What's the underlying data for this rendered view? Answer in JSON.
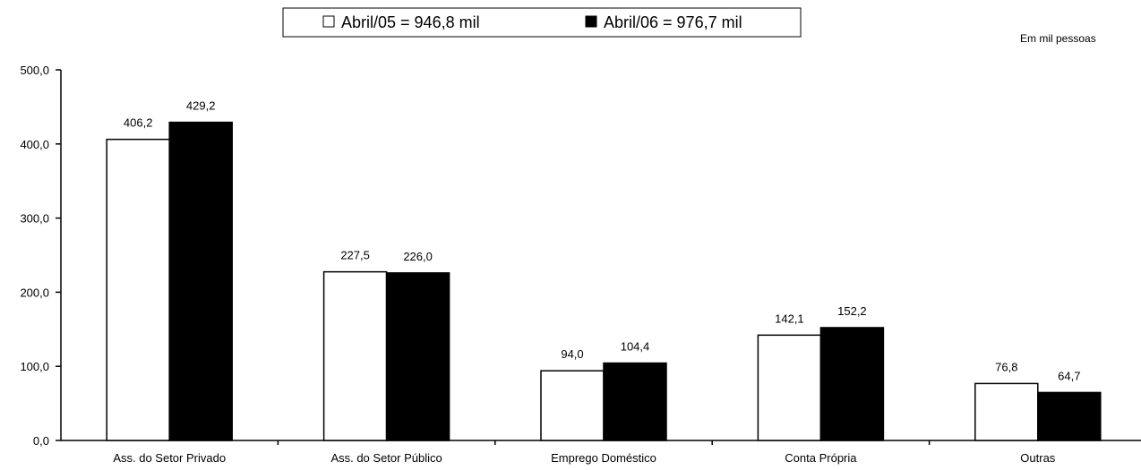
{
  "chart_data": {
    "type": "bar",
    "unit_note": "Em mil pessoas",
    "categories": [
      "Ass. do Setor Privado",
      "Ass. do Setor Público",
      "Emprego Doméstico",
      "Conta Própria",
      "Outras"
    ],
    "series": [
      {
        "name": "Abril/05 = 946,8 mil",
        "color": "#ffffff",
        "values": [
          406.2,
          227.5,
          94.0,
          142.1,
          76.8
        ],
        "labels": [
          "406,2",
          "227,5",
          "94,0",
          "142,1",
          "76,8"
        ]
      },
      {
        "name": "Abril/06 = 976,7 mil",
        "color": "#000000",
        "values": [
          429.2,
          226.0,
          104.4,
          152.2,
          64.7
        ],
        "labels": [
          "429,2",
          "226,0",
          "104,4",
          "152,2",
          "64,7"
        ]
      }
    ],
    "yticks": [
      "0,0",
      "100,0",
      "200,0",
      "300,0",
      "400,0",
      "500,0"
    ],
    "ylim": [
      0,
      500
    ],
    "legend_position": "top-center",
    "grid": false
  }
}
